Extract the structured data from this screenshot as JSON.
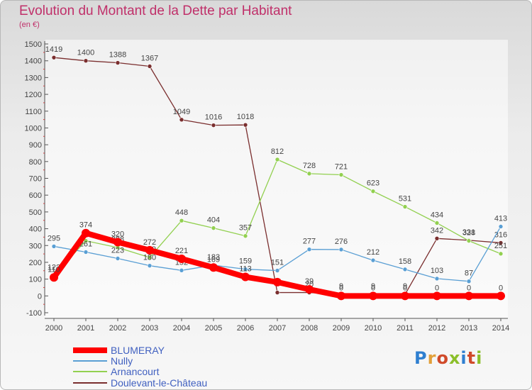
{
  "title": "Evolution du Montant de la Dette par Habitant",
  "subtitle": "(en €)",
  "logo": {
    "text": "Proxiti",
    "colors": [
      "#2f7fd0",
      "#e2a03a",
      "#d04a2a",
      "#8bbf2a",
      "#2f7fd0",
      "#d04a2a",
      "#8bbf2a"
    ]
  },
  "chart_data": {
    "type": "line",
    "x": [
      2000,
      2001,
      2002,
      2003,
      2004,
      2005,
      2006,
      2007,
      2008,
      2009,
      2010,
      2011,
      2012,
      2013,
      2014
    ],
    "ylim": [
      -100,
      1500
    ],
    "yticks": [
      -100,
      0,
      100,
      200,
      300,
      400,
      500,
      600,
      700,
      800,
      900,
      1000,
      1100,
      1200,
      1300,
      1400,
      1500
    ],
    "grid": false,
    "legend_position": "bottom-left",
    "series": [
      {
        "name": "BLUMERAY",
        "color": "#ff0000",
        "values": [
          110,
          374,
          320,
          272,
          221,
          169,
          113,
          82,
          39,
          0,
          0,
          0,
          0,
          0,
          0
        ],
        "labels": [
          "110",
          "374",
          "320",
          "272",
          "221",
          "169",
          "113",
          "",
          "39",
          "0",
          "0",
          "0",
          "0",
          "0",
          "0"
        ]
      },
      {
        "name": "Nully",
        "color": "#5a9fd4",
        "values": [
          295,
          261,
          223,
          180,
          152,
          183,
          159,
          151,
          277,
          276,
          212,
          158,
          103,
          87,
          413
        ],
        "labels": [
          "295",
          "261",
          "223",
          "180",
          "152",
          "183",
          "159",
          "151",
          "277",
          "276",
          "212",
          "158",
          "103",
          "87",
          "413"
        ]
      },
      {
        "name": "Arnancourt",
        "color": "#92d050",
        "values": [
          122,
          328,
          288,
          229,
          448,
          404,
          357,
          812,
          728,
          721,
          623,
          531,
          434,
          328,
          251
        ],
        "labels": [
          "122",
          "",
          "288",
          "229",
          "448",
          "404",
          "357",
          "812",
          "728",
          "721",
          "623",
          "531",
          "434",
          "328",
          "251"
        ]
      },
      {
        "name": "Doulevant-le-Château",
        "color": "#7a2e2e",
        "values": [
          1419,
          1400,
          1388,
          1367,
          1049,
          1016,
          1018,
          20,
          20,
          9,
          9,
          9,
          342,
          331,
          316
        ],
        "labels": [
          "1419",
          "1400",
          "1388",
          "1367",
          "1049",
          "1016",
          "1018",
          "",
          "20",
          "9",
          "9",
          "9",
          "342",
          "331",
          "316"
        ]
      }
    ]
  }
}
